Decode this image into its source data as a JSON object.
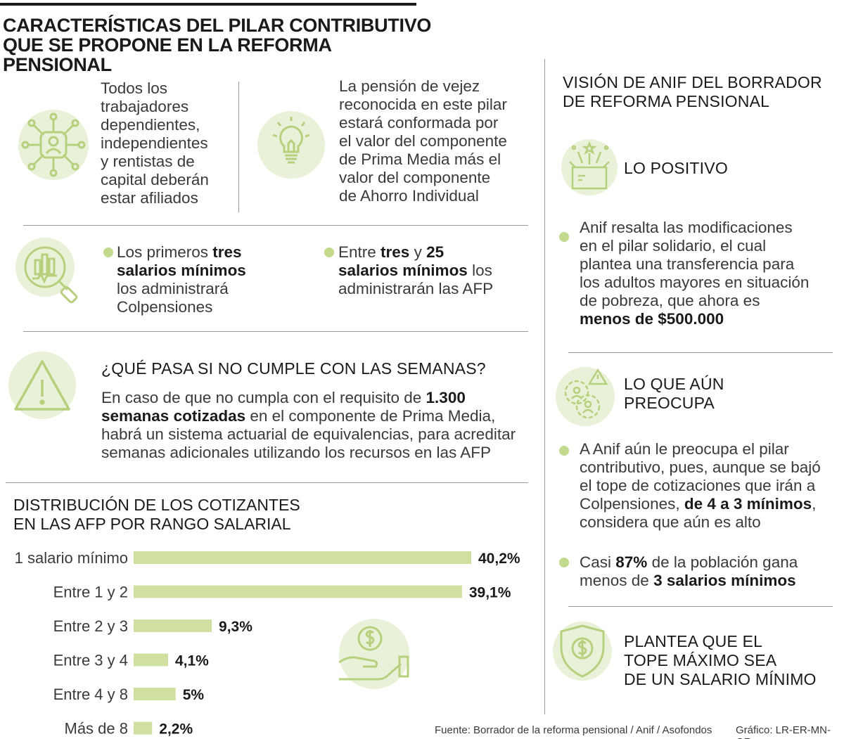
{
  "header": {
    "title_line1": "CARACTERÍSTICAS DEL PILAR CONTRIBUTIVO",
    "title_line2": "QUE SE PROPONE EN LA REFORMA PENSIONAL"
  },
  "left": {
    "affiliates_text": [
      "Todos los",
      "trabajadores",
      "dependientes,",
      "independientes",
      "y rentistas de",
      "capital deberán",
      "estar afiliados"
    ],
    "pension_text": [
      "La pensión de vejez",
      "reconocida en este pilar",
      "estará conformada por",
      "el valor del componente",
      "de Prima Media más el",
      "valor del componente",
      "de Ahorro Individual"
    ],
    "colpensiones": {
      "l1a": "Los primeros ",
      "l1b": "tres",
      "l2": "salarios mínimos",
      "l3": "los administrará",
      "l4": "Colpensiones"
    },
    "afp": {
      "l1a": "Entre ",
      "l1b": "tres",
      "l1c": " y ",
      "l1d": "25",
      "l2a": "salarios mínimos",
      "l2b": " los",
      "l3": "administrarán las AFP"
    },
    "weeks": {
      "heading": "¿QUÉ PASA SI NO CUMPLE CON LAS SEMANAS?",
      "l1a": "En caso de que no cumpla con el requisito de ",
      "l1b": "1.300",
      "l2a": "semanas cotizadas",
      "l2b": " en el componente de Prima Media,",
      "l3": "habrá un sistema actuarial de equivalencias, para acreditar",
      "l4": "semanas adicionales utilizando los recursos en las AFP"
    }
  },
  "right": {
    "title_line1": "VISIÓN DE ANIF DEL BORRADOR",
    "title_line2": "DE REFORMA PENSIONAL",
    "positive_label": "LO POSITIVO",
    "positive_text": [
      "Anif resalta las modificaciones",
      "en el pilar solidario, el cual",
      "plantea una transferencia para",
      "los adultos mayores en situación",
      "de pobreza, que ahora es"
    ],
    "positive_bold": "menos de $500.000",
    "concern_label_1": "LO QUE AÚN",
    "concern_label_2": "PREOCUPA",
    "concern_text": {
      "l1": "A Anif aún le preocupa el pilar",
      "l2": "contributivo, pues, aunque se bajó",
      "l3": "el tope de cotizaciones que irán a",
      "l4a": "Colpensiones, ",
      "l4b": "de 4 a 3 mínimos",
      "l4c": ",",
      "l5": "considera que aún es alto"
    },
    "population": {
      "l1a": "Casi ",
      "l1b": "87%",
      "l1c": " de la población gana",
      "l2a": "menos de ",
      "l2b": "3 salarios mínimos"
    },
    "proposal": [
      "PLANTEA QUE EL",
      "TOPE MÁXIMO SEA",
      "DE UN SALARIO MÍNIMO"
    ]
  },
  "chart_data": {
    "type": "bar",
    "orientation": "horizontal",
    "title": "DISTRIBUCIÓN DE LOS COTIZANTES EN LAS AFP POR RANGO SALARIAL",
    "title_line1": "DISTRIBUCIÓN DE LOS COTIZANTES",
    "title_line2": "EN LAS AFP POR RANGO SALARIAL",
    "categories": [
      "1 salario mínimo",
      "Entre 1 y 2",
      "Entre 2 y 3",
      "Entre 3 y 4",
      "Entre 4 y 8",
      "Más de 8"
    ],
    "values": [
      40.2,
      39.1,
      9.3,
      4.1,
      5,
      2.2
    ],
    "value_labels": [
      "40,2%",
      "39,1%",
      "9,3%",
      "4,1%",
      "5%",
      "2,2%"
    ],
    "unit": "%",
    "bar_color": "#cfe0a0",
    "grid": false
  },
  "footer": {
    "source": "Fuente: Borrador de la reforma pensional / Anif / Asofondos",
    "credit": "Gráfico: LR-ER-MN-GR"
  },
  "icons": [
    "network-people-icon",
    "lightbulb-icon",
    "chart-magnifier-icon",
    "warning-triangle-icon",
    "gift-box-icon",
    "gear-people-warning-icon",
    "dollar-hand-icon",
    "shield-dollar-icon"
  ],
  "colors": {
    "accent": "#c3d98c",
    "accent_light": "#e9f2d8",
    "bar": "#cfe0a0",
    "text": "#1a1a1a"
  }
}
